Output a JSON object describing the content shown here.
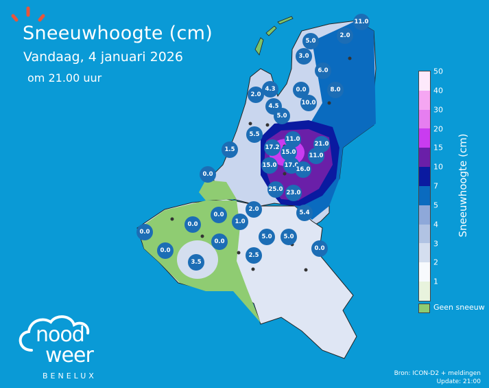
{
  "header": {
    "title": "Sneeuwhoogte (cm)",
    "date": "Vandaag, 4 januari 2026",
    "time": "om 21.00 uur"
  },
  "legend": {
    "title": "Sneeuwhoogte (cm)",
    "ticks": [
      "50",
      "40",
      "30",
      "20",
      "15",
      "10",
      "7",
      "5",
      "4",
      "3",
      "2",
      "1"
    ],
    "colors": [
      "#fde9fb",
      "#f5a6f2",
      "#e67ef0",
      "#c93cf0",
      "#6a1fa8",
      "#0a1aa0",
      "#0a6bbf",
      "#8ea8d9",
      "#b1c3e3",
      "#d4deef",
      "#f7fafd",
      "#e8f3dd"
    ],
    "no_snow_label": "Geen sneeuw",
    "no_snow_color": "#8fcc72"
  },
  "markers": [
    "11.0",
    "2.0",
    "5.0",
    "3.0",
    "6.0",
    "0.0",
    "8.0",
    "10.0",
    "2.0",
    "4.3",
    "4.5",
    "5.0",
    "5.5",
    "1.5",
    "11.0",
    "17.2",
    "15.0",
    "21.0",
    "11.0",
    "15.0",
    "17.0",
    "16.0",
    "0.0",
    "25.0",
    "23.0",
    "0.0",
    "2.0",
    "5.4",
    "1.0",
    "0.0",
    "0.0",
    "5.0",
    "5.0",
    "0.0",
    "0.0",
    "2.5",
    "0.0",
    "3.5"
  ],
  "source": {
    "line1": "Bron: ICON-D2 + meldingen",
    "line2": "Update: 21:00"
  },
  "brand": {
    "name1": "nood",
    "name2": "weer",
    "region": "BENELUX"
  }
}
